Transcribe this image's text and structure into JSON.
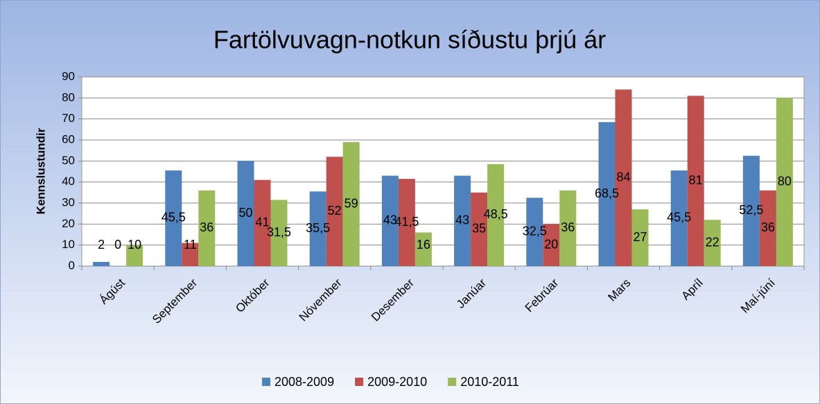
{
  "chart_data": {
    "type": "bar",
    "title": "Fartölvuvagn-notkun síðustu þrjú ár",
    "y_label": "Kennslustundir",
    "categories": [
      "Ágúst",
      "September",
      "Október",
      "Nóvember",
      "Desember",
      "Janúar",
      "Febrúar",
      "Mars",
      "Apríl",
      "Maí-júní"
    ],
    "series": [
      {
        "name": "2008-2009",
        "color": "#4f81bd",
        "values": [
          2,
          45.5,
          50,
          35.5,
          43,
          43,
          32.5,
          68.5,
          45.5,
          52.5
        ],
        "value_labels": [
          "2",
          "45,5",
          "50",
          "35,5",
          "43",
          "43",
          "32,5",
          "68,5",
          "45,5",
          "52,5"
        ]
      },
      {
        "name": "2009-2010",
        "color": "#c0504d",
        "values": [
          0,
          11,
          41,
          52,
          41.5,
          35,
          20,
          84,
          81,
          36
        ],
        "value_labels": [
          "0",
          "11",
          "41",
          "52",
          "41,5",
          "35",
          "20",
          "84",
          "81",
          "36"
        ]
      },
      {
        "name": "2010-2011",
        "color": "#9bbb59",
        "values": [
          10,
          36,
          31.5,
          59,
          16,
          48.5,
          36,
          27,
          22,
          80
        ],
        "value_labels": [
          "10",
          "36",
          "31,5",
          "59",
          "16",
          "48,5",
          "36",
          "27",
          "22",
          "80"
        ]
      }
    ],
    "ylim": [
      0,
      90
    ],
    "yticks": [
      0,
      10,
      20,
      30,
      40,
      50,
      60,
      70,
      80,
      90
    ],
    "grid": true,
    "legend": "bottom"
  }
}
